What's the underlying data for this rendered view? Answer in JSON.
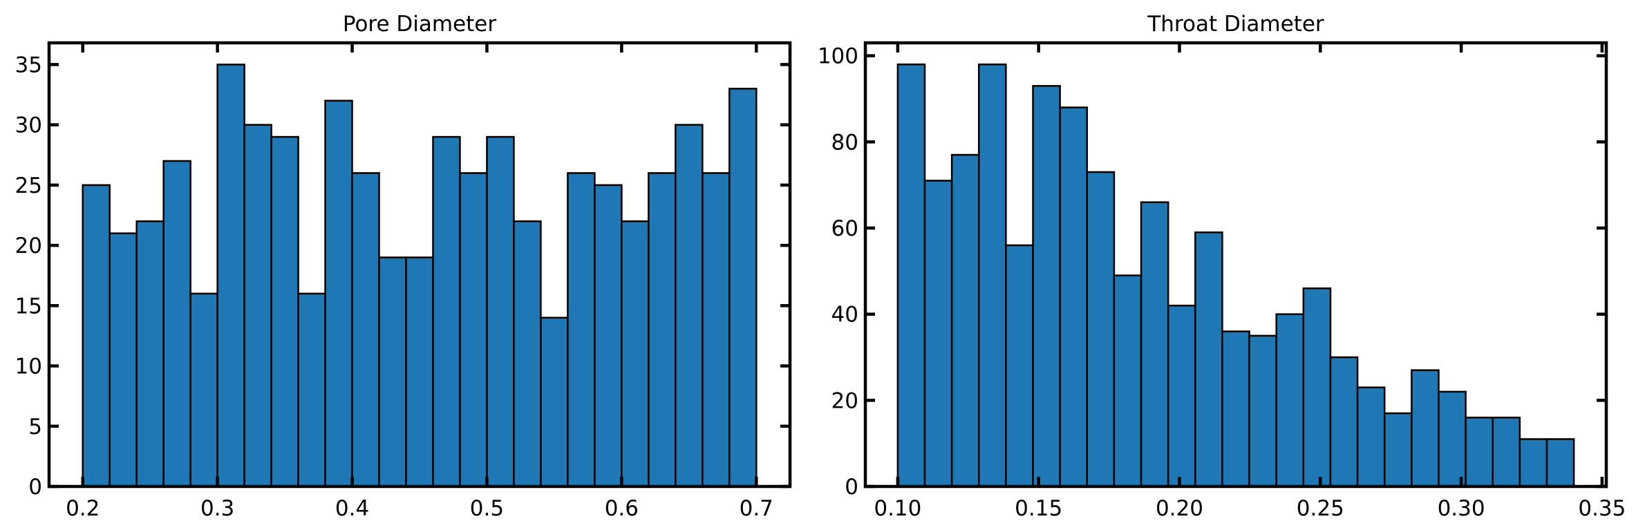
{
  "chart_data": [
    {
      "type": "bar",
      "title": "Pore Diameter",
      "xlabel": "",
      "ylabel": "",
      "bin_start": 0.2,
      "bin_end": 0.7,
      "values": [
        25,
        21,
        22,
        27,
        16,
        35,
        30,
        29,
        16,
        32,
        26,
        19,
        19,
        29,
        26,
        29,
        22,
        14,
        26,
        25,
        22,
        26,
        30,
        26,
        33
      ],
      "xlim": [
        0.175,
        0.725
      ],
      "ylim": [
        0,
        36.8
      ],
      "xticks": [
        0.2,
        0.3,
        0.4,
        0.5,
        0.6,
        0.7
      ],
      "xtick_labels": [
        "0.2",
        "0.3",
        "0.4",
        "0.5",
        "0.6",
        "0.7"
      ],
      "yticks": [
        0,
        5,
        10,
        15,
        20,
        25,
        30,
        35
      ],
      "ytick_labels": [
        "0",
        "5",
        "10",
        "15",
        "20",
        "25",
        "30",
        "35"
      ],
      "bar_color": "#1f77b4",
      "edge_color": "#000000",
      "grid": false
    },
    {
      "type": "bar",
      "title": "Throat Diameter",
      "xlabel": "",
      "ylabel": "",
      "bin_start": 0.1,
      "bin_end": 0.34,
      "values": [
        98,
        71,
        77,
        98,
        56,
        93,
        88,
        73,
        49,
        66,
        42,
        59,
        36,
        35,
        40,
        46,
        30,
        23,
        17,
        27,
        22,
        16,
        16,
        11,
        11
      ],
      "xlim": [
        0.0885,
        0.3515
      ],
      "ylim": [
        0,
        103
      ],
      "xticks": [
        0.1,
        0.15,
        0.2,
        0.25,
        0.3,
        0.35
      ],
      "xtick_labels": [
        "0.10",
        "0.15",
        "0.20",
        "0.25",
        "0.30",
        "0.35"
      ],
      "yticks": [
        0,
        20,
        40,
        60,
        80,
        100
      ],
      "ytick_labels": [
        "0",
        "20",
        "40",
        "60",
        "80",
        "100"
      ],
      "bar_color": "#1f77b4",
      "edge_color": "#000000",
      "grid": false
    }
  ]
}
